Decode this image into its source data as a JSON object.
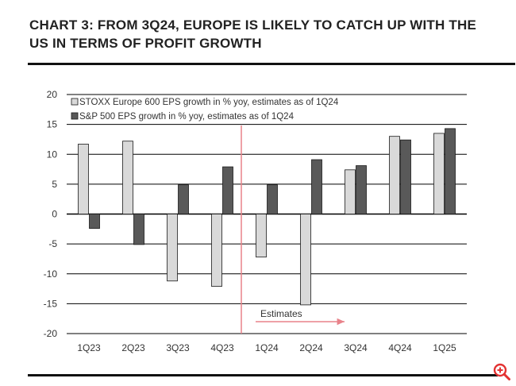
{
  "title": "CHART 3: FROM 3Q24, EUROPE IS LIKELY TO CATCH UP WITH THE US IN TERMS OF PROFIT GROWTH",
  "colors": {
    "series_europe": "#d9d9d9",
    "series_us": "#595959",
    "gridline": "#000000",
    "estimate_marker": "#e8828a"
  },
  "icons": {
    "zoom": "zoom-in-icon"
  },
  "chart_data": {
    "type": "bar",
    "categories": [
      "1Q23",
      "2Q23",
      "3Q23",
      "4Q23",
      "1Q24",
      "2Q24",
      "3Q24",
      "4Q24",
      "1Q25"
    ],
    "series": [
      {
        "name": "STOXX Europe 600 EPS growth in % yoy, estimates as of 1Q24",
        "values": [
          11.7,
          12.2,
          -11.2,
          -12.1,
          -7.2,
          -15.2,
          7.4,
          13.0,
          13.5
        ]
      },
      {
        "name": "S&P 500 EPS growth in % yoy, estimates as of 1Q24",
        "values": [
          -2.4,
          -5.1,
          4.9,
          7.9,
          4.9,
          9.1,
          8.1,
          12.4,
          14.3
        ]
      }
    ],
    "ylim": [
      -20,
      20
    ],
    "yticks": [
      20,
      15,
      10,
      5,
      0,
      -5,
      -10,
      -15,
      -20
    ],
    "xlabel": "",
    "ylabel": "",
    "grid": true,
    "legend_position": "top-left",
    "annotations": [
      {
        "text": "Estimates",
        "starts_before_category": "1Q24",
        "arrow": "right"
      }
    ]
  }
}
